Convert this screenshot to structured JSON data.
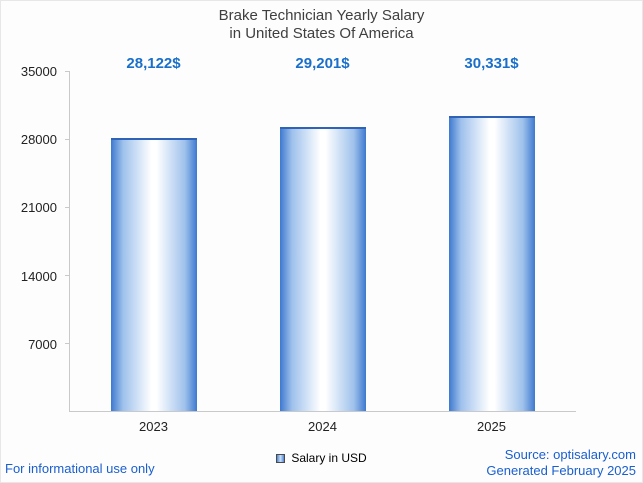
{
  "title": {
    "line1": "Brake Technician Yearly Salary",
    "line2": "in United States Of America"
  },
  "chart_data": {
    "type": "bar",
    "categories": [
      "2023",
      "2024",
      "2025"
    ],
    "values": [
      28122,
      29201,
      30331
    ],
    "value_labels": [
      "28,122$",
      "29,201$",
      "30,331$"
    ],
    "title": "Brake Technician Yearly Salary in United States Of America",
    "xlabel": "",
    "ylabel": "",
    "ylim": [
      0,
      35000
    ],
    "yticks": [
      35000,
      28000,
      21000,
      14000,
      7000
    ],
    "grid": false,
    "legend_position": "bottom"
  },
  "legend": {
    "label": "Salary in USD"
  },
  "footer": {
    "left": "For informational use only",
    "source": "Source: optisalary.com",
    "generated": "Generated February 2025"
  },
  "colors": {
    "accent_text": "#1a6fca",
    "footer_text": "#1a5fd0",
    "bar_edge": "#3e79cf",
    "bar_center": "#ffffff",
    "axis": "#c9c9c9",
    "title_text": "#3f3f3f"
  }
}
